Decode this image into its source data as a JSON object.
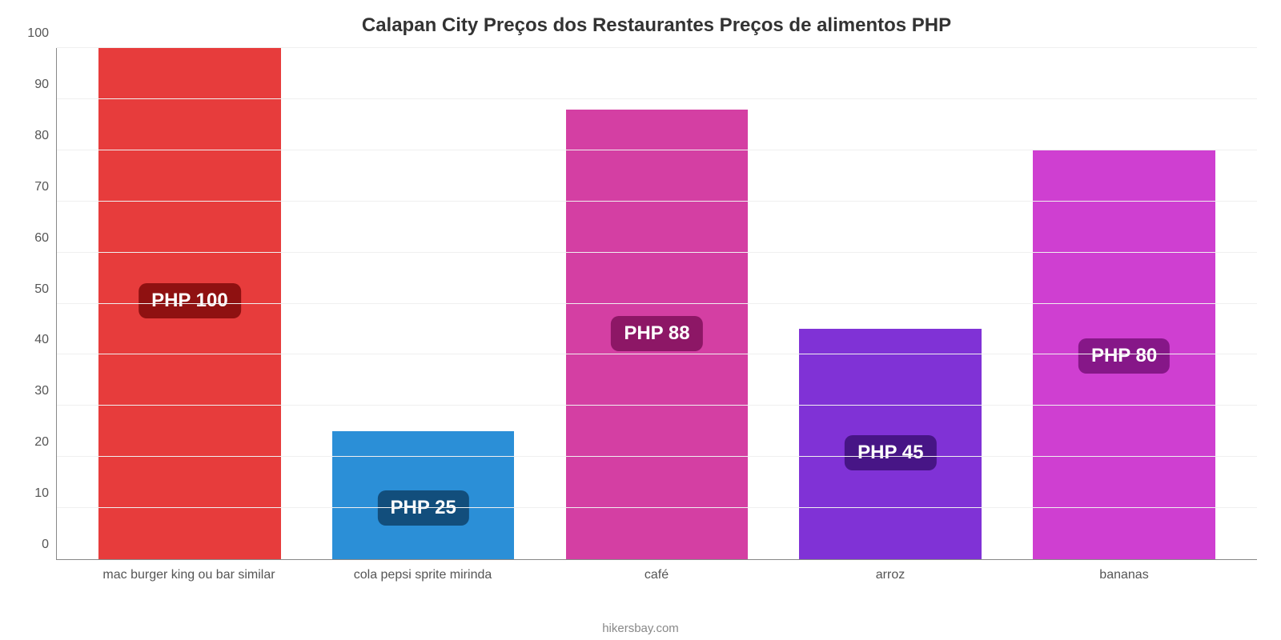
{
  "chart": {
    "type": "bar",
    "title": "Calapan City Preços dos Restaurantes Preços de alimentos PHP",
    "title_fontsize": 24,
    "title_color": "#333333",
    "attribution": "hikersbay.com",
    "attribution_color": "#888888",
    "background_color": "#ffffff",
    "grid_color": "#f0f0f0",
    "axis_color": "#888888",
    "ylim": [
      0,
      100
    ],
    "ytick_step": 10,
    "yticks": [
      0,
      10,
      20,
      30,
      40,
      50,
      60,
      70,
      80,
      90,
      100
    ],
    "ytick_fontsize": 16,
    "ytick_color": "#555555",
    "xlabel_fontsize": 16,
    "xlabel_color": "#555555",
    "bar_width_pct": 78,
    "value_label_fontsize": 24,
    "value_label_text_color": "#ffffff",
    "value_label_radius": 10,
    "categories": [
      "mac burger king ou bar similar",
      "cola pepsi sprite mirinda",
      "café",
      "arroz",
      "bananas"
    ],
    "values": [
      100,
      25,
      88,
      45,
      80
    ],
    "value_labels": [
      "PHP 100",
      "PHP 25",
      "PHP 88",
      "PHP 45",
      "PHP 80"
    ],
    "bar_colors": [
      "#e73c3c",
      "#2b8fd7",
      "#d43fa3",
      "#8032d6",
      "#cf3fd1"
    ],
    "label_bg_colors": [
      "#8f1111",
      "#124e7c",
      "#8d1766",
      "#471586",
      "#861788"
    ]
  }
}
